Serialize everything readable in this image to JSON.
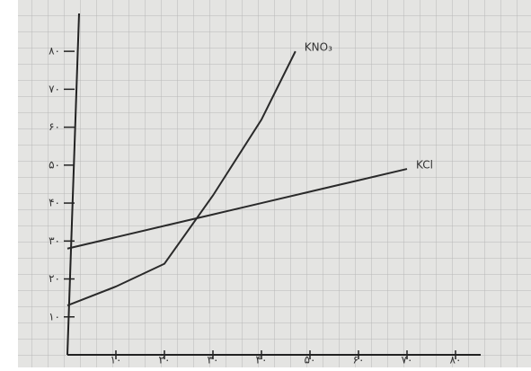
{
  "chart_data": {
    "type": "line",
    "xlim": [
      0,
      85
    ],
    "ylim": [
      0,
      85
    ],
    "xticks": [
      {
        "value": 10,
        "label": "۱۰"
      },
      {
        "value": 20,
        "label": "۲۰"
      },
      {
        "value": 30,
        "label": "۳۰"
      },
      {
        "value": 40,
        "label": "۴۰"
      },
      {
        "value": 50,
        "label": "۵۰"
      },
      {
        "value": 60,
        "label": "۶۰"
      },
      {
        "value": 70,
        "label": "۷۰"
      },
      {
        "value": 80,
        "label": "۸۰"
      }
    ],
    "yticks": [
      {
        "value": 10,
        "label": "۱۰"
      },
      {
        "value": 20,
        "label": "۲۰"
      },
      {
        "value": 30,
        "label": "۳۰"
      },
      {
        "value": 40,
        "label": "۴۰"
      },
      {
        "value": 50,
        "label": "۵۰"
      },
      {
        "value": 60,
        "label": "۶۰"
      },
      {
        "value": 70,
        "label": "۷۰"
      },
      {
        "value": 80,
        "label": "۸۰"
      }
    ],
    "series": [
      {
        "name": "KNO₃",
        "color": "#2a2a2a",
        "x": [
          0,
          10,
          20,
          30,
          40,
          47
        ],
        "values": [
          13,
          18,
          24,
          42,
          62,
          80
        ]
      },
      {
        "name": "KCl",
        "color": "#2a2a2a",
        "x": [
          0,
          10,
          20,
          30,
          40,
          50,
          60,
          70
        ],
        "values": [
          28,
          31,
          34,
          37,
          40,
          43,
          46,
          49
        ]
      }
    ]
  }
}
